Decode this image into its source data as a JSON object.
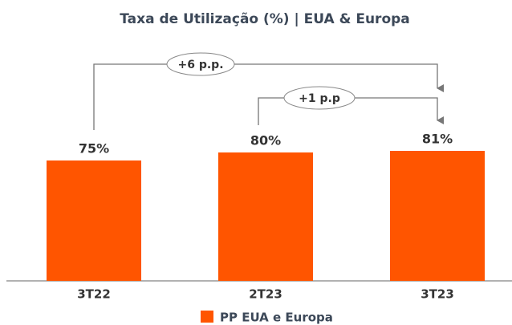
{
  "chart_data": {
    "type": "bar",
    "title": "Taxa de Utilização (%) | EUA & Europa",
    "categories": [
      "3T22",
      "2T23",
      "3T23"
    ],
    "series": [
      {
        "name": "PP EUA e Europa",
        "color": "#ff5500",
        "values": [
          75,
          80,
          81
        ],
        "value_labels": [
          "75%",
          "80%",
          "81%"
        ]
      }
    ],
    "ylim": [
      0,
      100
    ],
    "annotations": [
      "+6 p.p.",
      "+1 p.p"
    ]
  }
}
